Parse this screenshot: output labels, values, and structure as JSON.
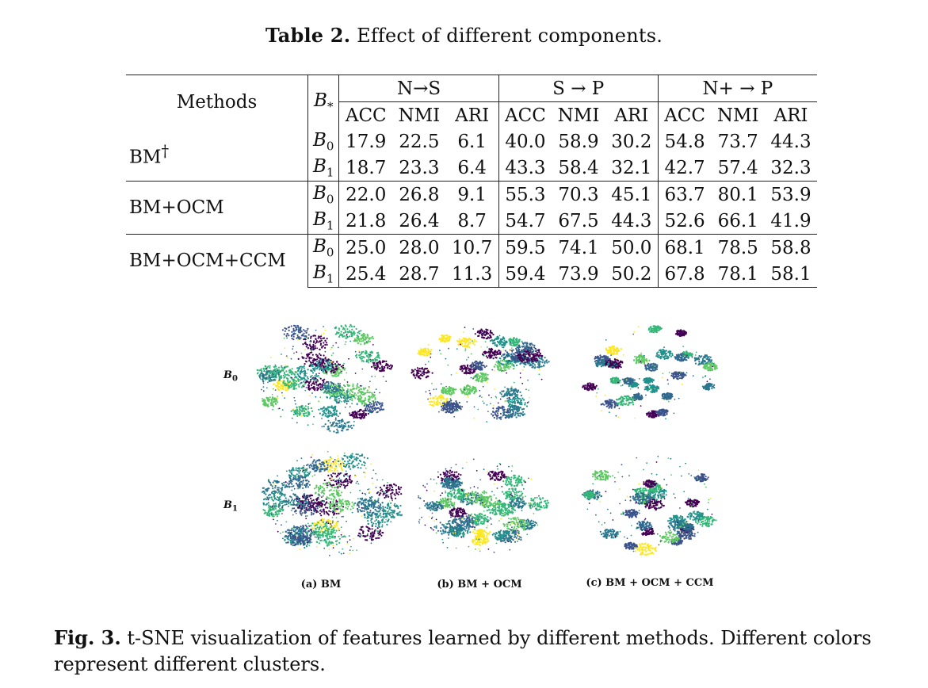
{
  "table_caption": {
    "label": "Table 2.",
    "text": "Effect of different components."
  },
  "table": {
    "header_methods": "Methods",
    "header_b": "B",
    "header_b_sub": "*",
    "groups": [
      "N→S",
      "S → P",
      "N+ → P"
    ],
    "metrics": [
      "ACC",
      "NMI",
      "ARI",
      "ACC",
      "NMI",
      "ARI",
      "ACC",
      "NMI",
      "ARI"
    ],
    "rows": [
      {
        "method": "BM",
        "method_sup": "†",
        "b_sub": "0",
        "values": [
          "17.9",
          "22.5",
          "6.1",
          "40.0",
          "58.9",
          "30.2",
          "54.8",
          "73.7",
          "44.3"
        ]
      },
      {
        "method": "",
        "method_sup": "",
        "b_sub": "1",
        "values": [
          "18.7",
          "23.3",
          "6.4",
          "43.3",
          "58.4",
          "32.1",
          "42.7",
          "57.4",
          "32.3"
        ]
      },
      {
        "method": "BM+OCM",
        "method_sup": "",
        "b_sub": "0",
        "values": [
          "22.0",
          "26.8",
          "9.1",
          "55.3",
          "70.3",
          "45.1",
          "63.7",
          "80.1",
          "53.9"
        ]
      },
      {
        "method": "",
        "method_sup": "",
        "b_sub": "1",
        "values": [
          "21.8",
          "26.4",
          "8.7",
          "54.7",
          "67.5",
          "44.3",
          "52.6",
          "66.1",
          "41.9"
        ]
      },
      {
        "method": "BM+OCM+CCM",
        "method_sup": "",
        "b_sub": "0",
        "values": [
          "25.0",
          "28.0",
          "10.7",
          "59.5",
          "74.1",
          "50.0",
          "68.1",
          "78.5",
          "58.8"
        ]
      },
      {
        "method": "",
        "method_sup": "",
        "b_sub": "1",
        "values": [
          "25.4",
          "28.7",
          "11.3",
          "59.4",
          "73.9",
          "50.2",
          "67.8",
          "78.1",
          "58.1"
        ]
      }
    ]
  },
  "figure": {
    "row_labels": [
      {
        "b": "B",
        "sub": "0"
      },
      {
        "b": "B",
        "sub": "1"
      }
    ],
    "subcaptions": [
      "(a) BM",
      "(b) BM + OCM",
      "(c) BM + OCM + CCM"
    ],
    "palette": [
      "#440154",
      "#3b528b",
      "#21918c",
      "#2a788e",
      "#5ec962",
      "#fde725",
      "#31688e",
      "#35b779"
    ]
  },
  "figure_caption": {
    "label": "Fig. 3.",
    "text": "t-SNE visualization of features learned by different methods. Different colors represent different clusters."
  }
}
